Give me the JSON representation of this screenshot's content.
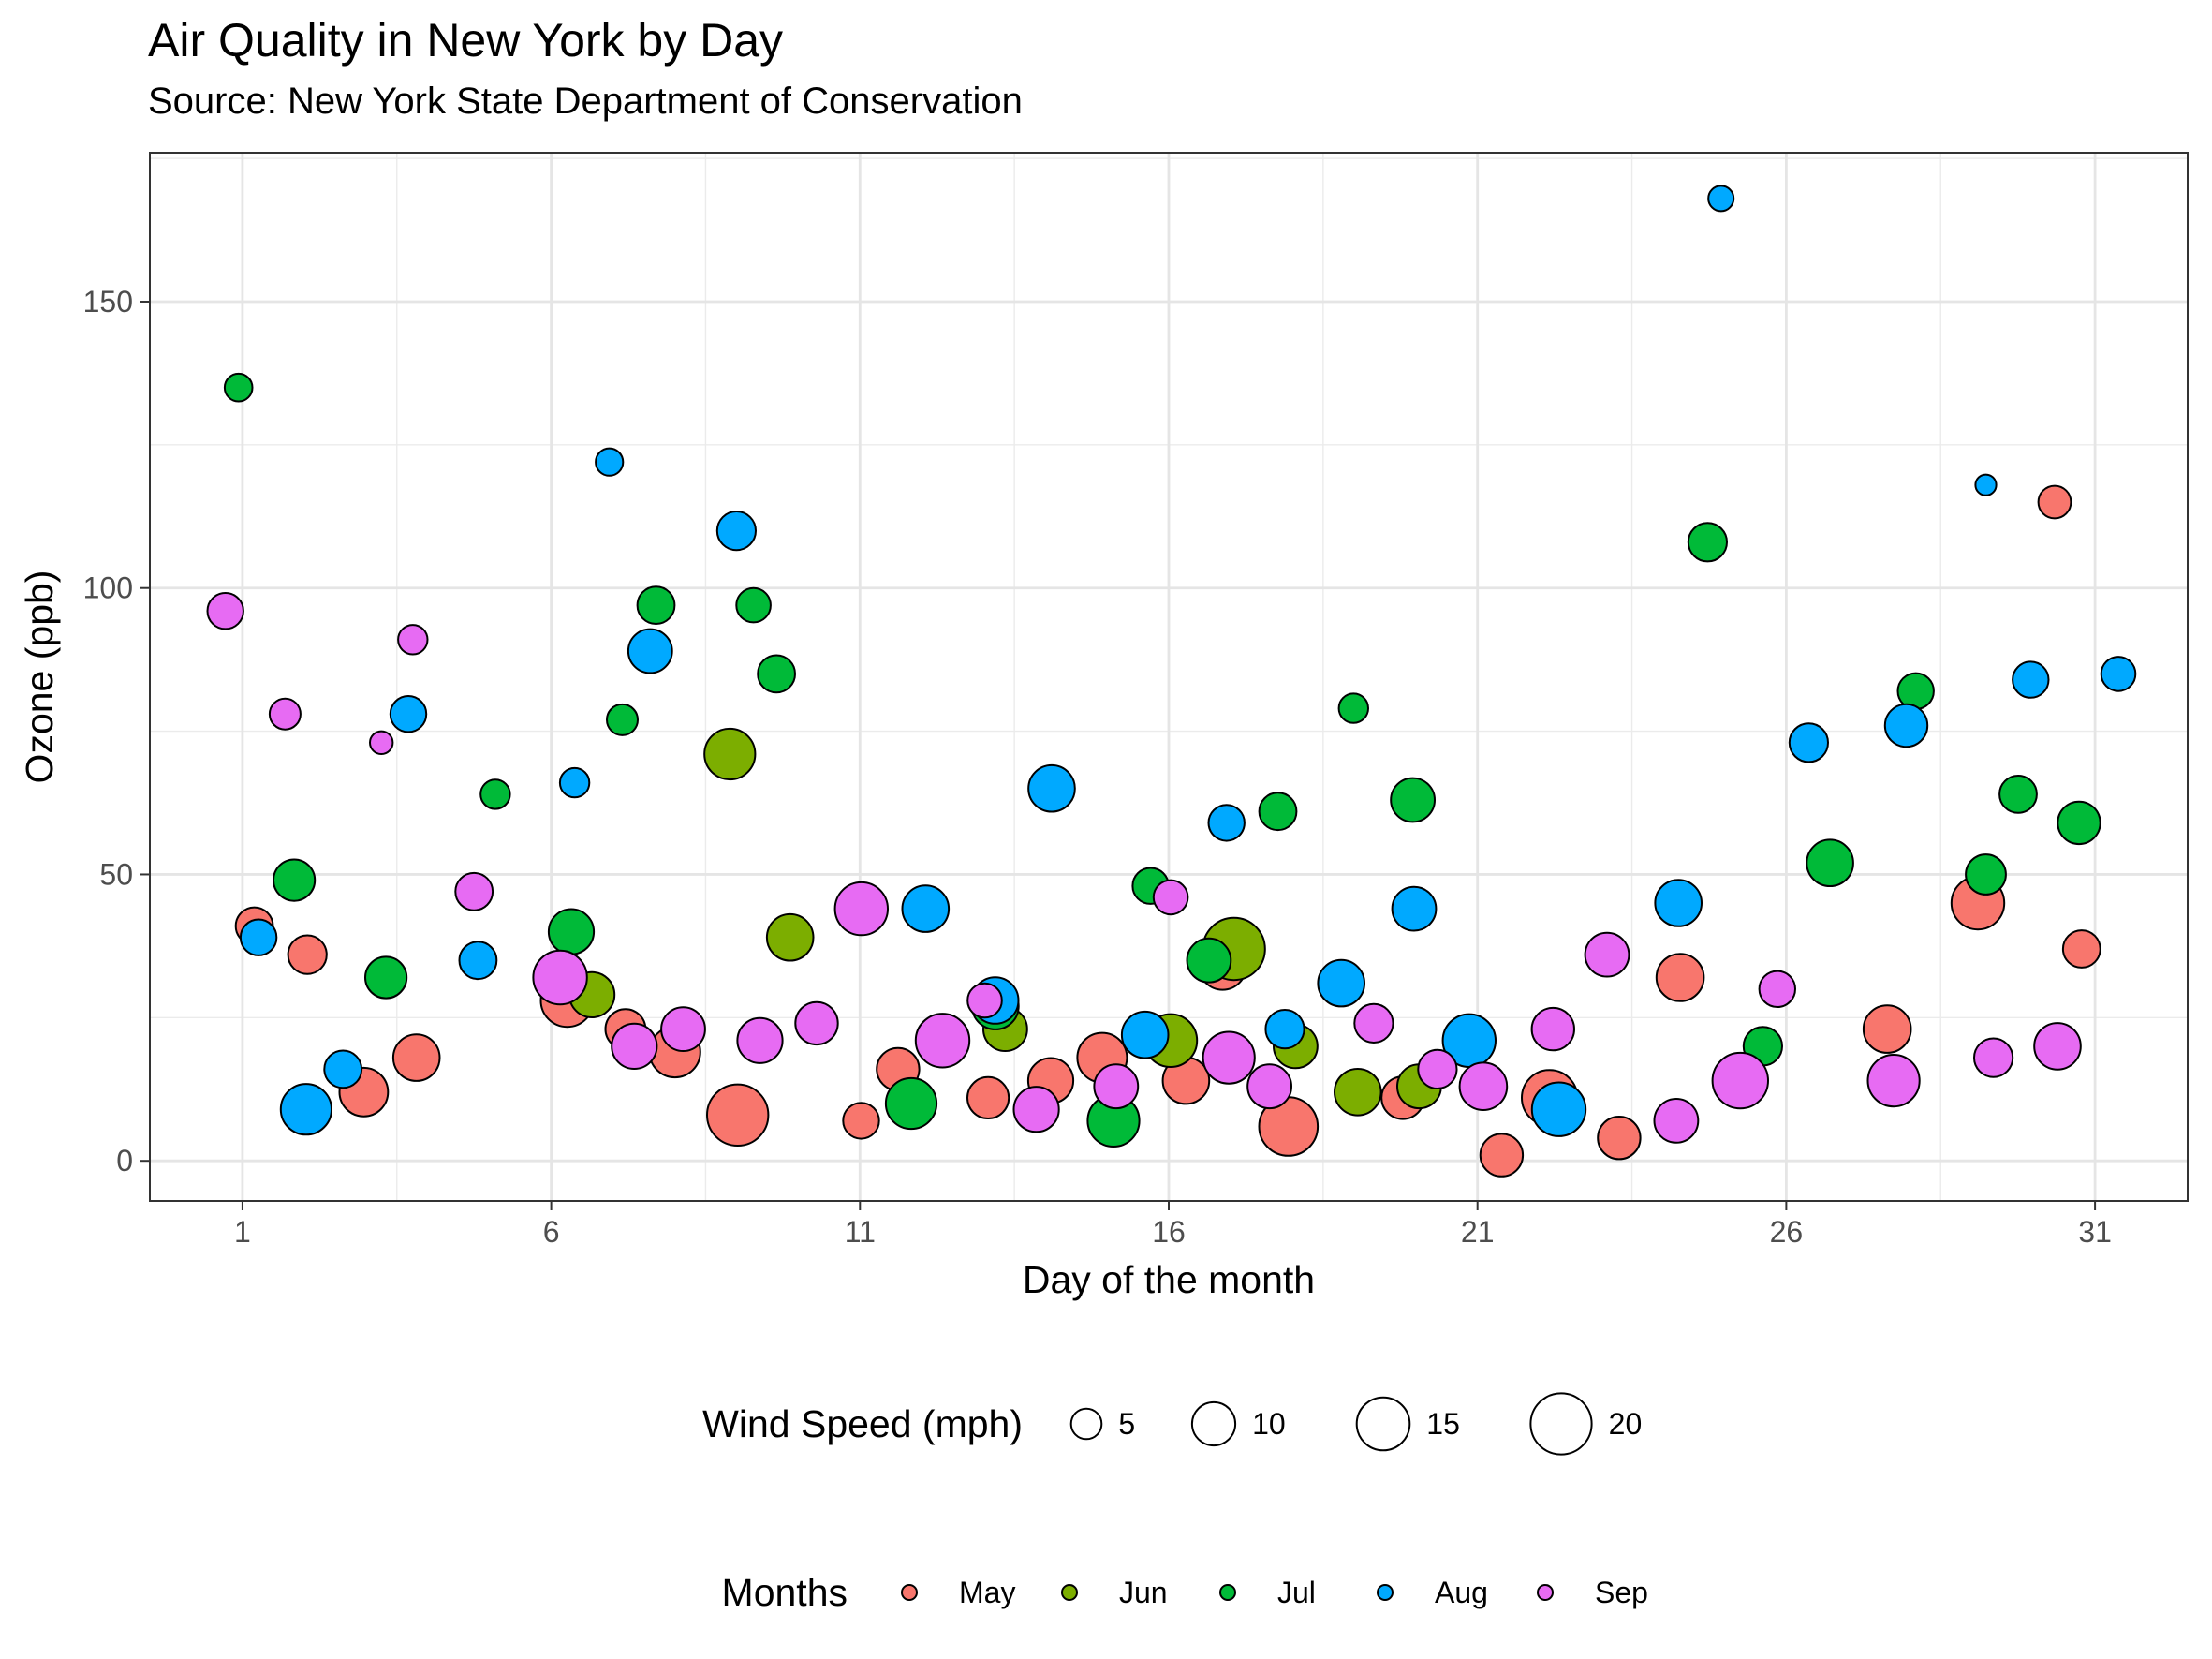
{
  "chart_data": {
    "type": "scatter",
    "title": "Air Quality in New York by Day",
    "subtitle": "Source: New York State Department of Conservation",
    "xlabel": "Day of the month",
    "ylabel": "Ozone (ppb)",
    "xlim": [
      -0.5,
      32.5
    ],
    "ylim": [
      -7,
      176
    ],
    "x_ticks": [
      1,
      6,
      11,
      16,
      21,
      26,
      31
    ],
    "y_ticks": [
      0,
      50,
      100,
      150
    ],
    "grid": true,
    "size_legend": {
      "title": "Wind Speed (mph)",
      "entries": [
        {
          "label": "5",
          "value": 5
        },
        {
          "label": "10",
          "value": 10
        },
        {
          "label": "15",
          "value": 15
        },
        {
          "label": "20",
          "value": 20
        }
      ]
    },
    "color_legend": {
      "title": "Months",
      "placement": "bottom"
    },
    "series": [
      {
        "name": "May",
        "color": "#F8766D",
        "points": [
          [
            1,
            41,
            7.4
          ],
          [
            2,
            36,
            8
          ],
          [
            3,
            12,
            12.6
          ],
          [
            4,
            18,
            11.5
          ],
          [
            6,
            28,
            14.9
          ],
          [
            7,
            23,
            8.6
          ],
          [
            8,
            19,
            13.8
          ],
          [
            9,
            8,
            20.1
          ],
          [
            11,
            7,
            6.9
          ],
          [
            12,
            16,
            9.7
          ],
          [
            13,
            11,
            9.2
          ],
          [
            14,
            14,
            10.9
          ],
          [
            15,
            18,
            13.2
          ],
          [
            16,
            14,
            11.5
          ],
          [
            17,
            34,
            12
          ],
          [
            18,
            6,
            18.4
          ],
          [
            20,
            11,
            9.7
          ],
          [
            21,
            1,
            9.7
          ],
          [
            22,
            11,
            16.6
          ],
          [
            23,
            4,
            9.7
          ],
          [
            24,
            32,
            12
          ],
          [
            28,
            23,
            12
          ],
          [
            29,
            45,
            14.9
          ],
          [
            30,
            115,
            5.7
          ],
          [
            31,
            37,
            7.4
          ]
        ]
      },
      {
        "name": "Jun",
        "color": "#7CAE00",
        "points": [
          [
            7,
            29,
            10.9
          ],
          [
            9,
            71,
            13.8
          ],
          [
            10,
            39,
            11.5
          ],
          [
            13,
            23,
            10.3
          ],
          [
            16,
            21,
            14.9
          ],
          [
            17,
            37,
            20.7
          ],
          [
            18,
            20,
            10.3
          ],
          [
            19,
            12,
            11.5
          ],
          [
            20,
            13,
            10.3
          ]
        ]
      },
      {
        "name": "Jul",
        "color": "#00BA38",
        "points": [
          [
            1,
            135,
            4.1
          ],
          [
            2,
            49,
            9.2
          ],
          [
            3,
            32,
            9.2
          ],
          [
            5,
            64,
            4.6
          ],
          [
            6,
            40,
            10.9
          ],
          [
            7,
            77,
            5.1
          ],
          [
            8,
            97,
            7.4
          ],
          [
            9,
            97,
            6.3
          ],
          [
            10,
            85,
            7.4
          ],
          [
            12,
            10,
            13.8
          ],
          [
            13,
            27,
            11.5
          ],
          [
            15,
            7,
            14.3
          ],
          [
            16,
            48,
            6.9
          ],
          [
            17,
            35,
            10.3
          ],
          [
            18,
            61,
            7.4
          ],
          [
            19,
            79,
            4.6
          ],
          [
            20,
            63,
            10.3
          ],
          [
            25,
            108,
            8
          ],
          [
            26,
            20,
            8
          ],
          [
            27,
            52,
            11.5
          ],
          [
            28,
            82,
            6.9
          ],
          [
            29,
            50,
            8.6
          ],
          [
            30,
            64,
            7.4
          ],
          [
            31,
            59,
            9.7
          ]
        ]
      },
      {
        "name": "Aug",
        "color": "#00A9FF",
        "points": [
          [
            1,
            39,
            6.9
          ],
          [
            2,
            9,
            13.8
          ],
          [
            3,
            16,
            7.4
          ],
          [
            4,
            78,
            6.9
          ],
          [
            5,
            35,
            7.4
          ],
          [
            6,
            66,
            4.6
          ],
          [
            7,
            122,
            4
          ],
          [
            8,
            89,
            10.3
          ],
          [
            9,
            110,
            8
          ],
          [
            12,
            44,
            11.5
          ],
          [
            13,
            28,
            11.5
          ],
          [
            14,
            65,
            11.5
          ],
          [
            16,
            22,
            11.5
          ],
          [
            17,
            59,
            6.9
          ],
          [
            18,
            23,
            8
          ],
          [
            19,
            31,
            11.5
          ],
          [
            20,
            44,
            10.3
          ],
          [
            21,
            21,
            14.9
          ],
          [
            22,
            9,
            15.5
          ],
          [
            24,
            45,
            11.5
          ],
          [
            25,
            168,
            3.4
          ],
          [
            26,
            73,
            8
          ],
          [
            28,
            76,
            9.7
          ],
          [
            29,
            118,
            2.3
          ],
          [
            30,
            84,
            6.9
          ],
          [
            31,
            85,
            6.3
          ]
        ]
      },
      {
        "name": "Sep",
        "color": "#E76BF3",
        "points": [
          [
            1,
            96,
            6.9
          ],
          [
            2,
            78,
            5.1
          ],
          [
            3,
            73,
            2.8
          ],
          [
            4,
            91,
            4.6
          ],
          [
            5,
            47,
            7.4
          ],
          [
            6,
            32,
            15.5
          ],
          [
            7,
            20,
            10.9
          ],
          [
            8,
            23,
            10.3
          ],
          [
            9,
            21,
            10.9
          ],
          [
            10,
            24,
            9.7
          ],
          [
            11,
            44,
            14.9
          ],
          [
            12,
            21,
            15.5
          ],
          [
            13,
            28,
            6.3
          ],
          [
            14,
            9,
            10.9
          ],
          [
            15,
            13,
            10.3
          ],
          [
            16,
            46,
            6.3
          ],
          [
            17,
            18,
            14.3
          ],
          [
            18,
            13,
            10.3
          ],
          [
            19,
            24,
            8
          ],
          [
            20,
            16,
            8
          ],
          [
            21,
            13,
            12
          ],
          [
            22,
            23,
            9.7
          ],
          [
            23,
            36,
            10.3
          ],
          [
            24,
            7,
            10.3
          ],
          [
            25,
            14,
            16.6
          ],
          [
            26,
            30,
            6.9
          ],
          [
            28,
            14,
            14.3
          ],
          [
            29,
            18,
            8
          ],
          [
            30,
            20,
            11.5
          ]
        ]
      }
    ]
  }
}
